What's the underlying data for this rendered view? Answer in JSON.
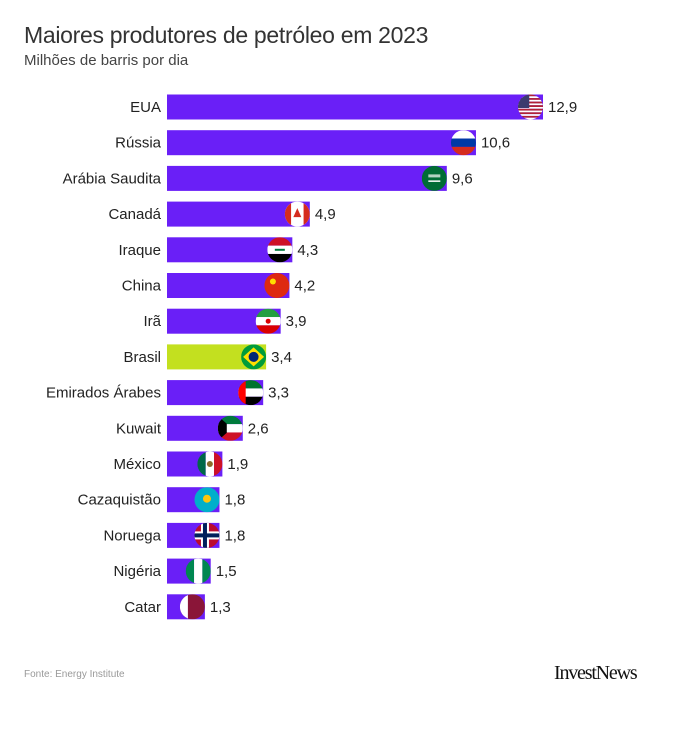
{
  "chart_data": {
    "type": "bar",
    "orientation": "horizontal",
    "title": "Maiores produtores de petróleo em 2023",
    "subtitle": "Milhões de barris por dia",
    "categories": [
      "EUA",
      "Rússia",
      "Arábia Saudita",
      "Canadá",
      "Iraque",
      "China",
      "Irã",
      "Brasil",
      "Emirados Árabes",
      "Kuwait",
      "México",
      "Cazaquistão",
      "Noruega",
      "Nigéria",
      "Catar"
    ],
    "values": [
      12.9,
      10.6,
      9.6,
      4.9,
      4.3,
      4.2,
      3.9,
      3.4,
      3.3,
      2.6,
      1.9,
      1.8,
      1.8,
      1.5,
      1.3
    ],
    "value_labels": [
      "12,9",
      "10,6",
      "9,6",
      "4,9",
      "4,3",
      "4,2",
      "3,9",
      "3,4",
      "3,3",
      "2,6",
      "1,9",
      "1,8",
      "1,8",
      "1,5",
      "1,3"
    ],
    "flags": [
      "us",
      "ru",
      "sa",
      "ca",
      "iq",
      "cn",
      "ir",
      "br",
      "ae",
      "kw",
      "mx",
      "kz",
      "no",
      "ng",
      "qa"
    ],
    "highlight": "Brasil",
    "colors": {
      "bar": "#6a1ff7",
      "highlight": "#c3e01f",
      "label": "#222222"
    },
    "xlim": [
      0,
      12.9
    ],
    "grid": false
  },
  "footer": {
    "source": "Fonte: Energy Institute",
    "logo": "InvestNews"
  }
}
